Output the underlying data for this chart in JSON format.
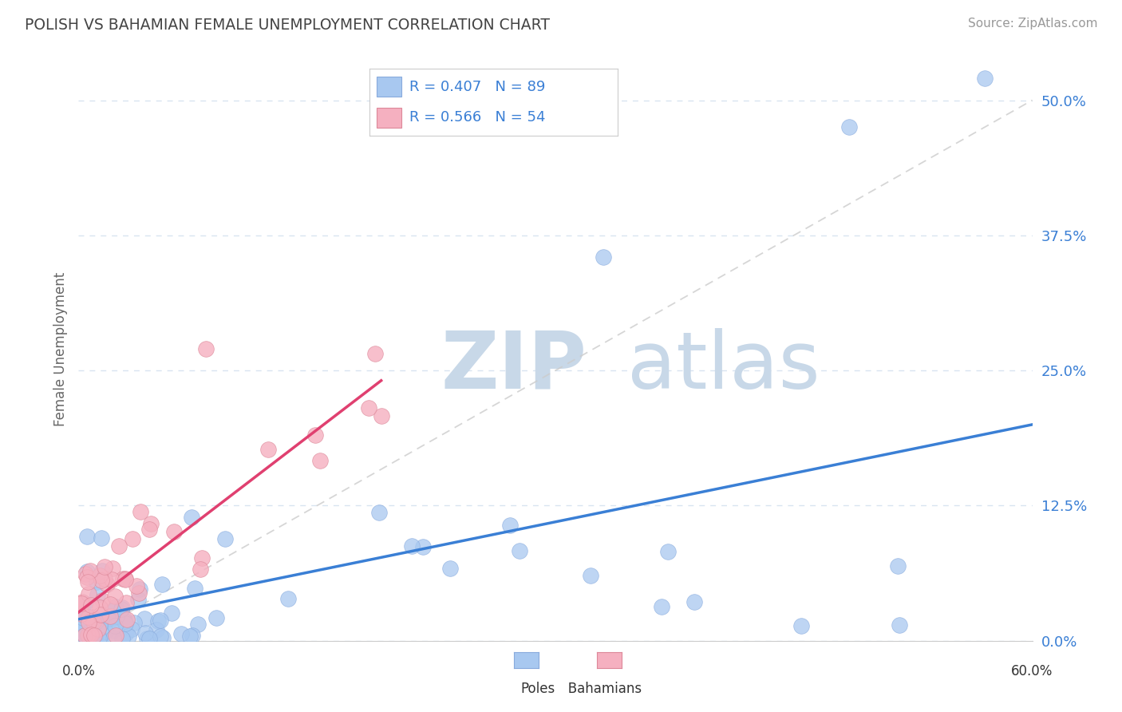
{
  "title": "POLISH VS BAHAMIAN FEMALE UNEMPLOYMENT CORRELATION CHART",
  "source_text": "Source: ZipAtlas.com",
  "ylabel": "Female Unemployment",
  "ytick_values": [
    0.0,
    12.5,
    25.0,
    37.5,
    50.0
  ],
  "xlim": [
    0.0,
    60.0
  ],
  "ylim": [
    0.0,
    54.0
  ],
  "poles_color": "#a8c8f0",
  "poles_edge_color": "#88aadd",
  "bahamians_color": "#f5b0c0",
  "bahamians_edge_color": "#dd8899",
  "poles_line_color": "#3a7fd5",
  "bahamians_line_color": "#e04070",
  "diagonal_color": "#cccccc",
  "background_color": "#ffffff",
  "grid_color": "#d8e4f0",
  "label_color": "#3a7fd5",
  "watermark_zip_color": "#c8d8e8",
  "watermark_atlas_color": "#c8d8e8",
  "title_color": "#444444",
  "source_color": "#999999",
  "ylabel_color": "#666666",
  "bottom_label_color": "#333333"
}
